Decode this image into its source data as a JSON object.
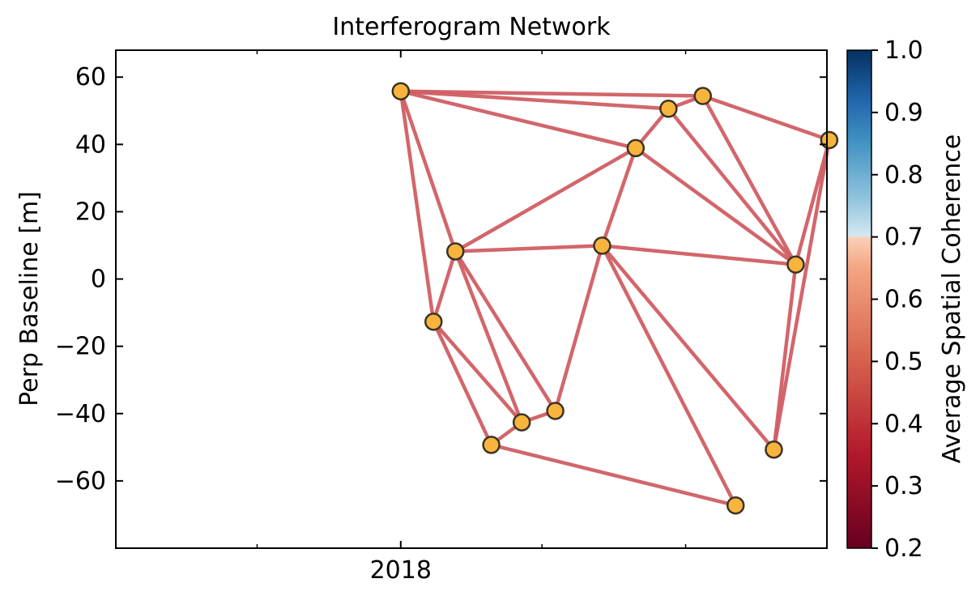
{
  "chart_data": {
    "type": "scatter",
    "title": "Interferogram Network",
    "xlabel": "",
    "ylabel": "Perp Baseline [m]",
    "x_ticks": [
      {
        "value": "2018-01-01",
        "label": "2018"
      }
    ],
    "xlim": [
      "2017-01-01",
      "2019-07-01"
    ],
    "ylim": [
      -80,
      68
    ],
    "y_ticks": [
      60,
      40,
      20,
      0,
      -20,
      -40,
      -60
    ],
    "y_tick_labels": [
      "60",
      "40",
      "20",
      "0",
      "−20",
      "−40",
      "−60"
    ],
    "minor_x_ticks": [
      "2017-07-01",
      "2018-07-01",
      "2019-01-01",
      "2019-07-01"
    ],
    "grid": false,
    "acquisitions": [
      {
        "date": "2018-01-01",
        "bperp": 55.8
      },
      {
        "date": "2018-02-12",
        "bperp": -12.7
      },
      {
        "date": "2018-03-12",
        "bperp": 8.2
      },
      {
        "date": "2018-04-27",
        "bperp": -49.3
      },
      {
        "date": "2018-06-05",
        "bperp": -42.6
      },
      {
        "date": "2018-07-18",
        "bperp": -39.2
      },
      {
        "date": "2018-09-16",
        "bperp": 9.9
      },
      {
        "date": "2018-10-29",
        "bperp": 38.9
      },
      {
        "date": "2018-12-10",
        "bperp": 50.6
      },
      {
        "date": "2019-01-23",
        "bperp": 54.4
      },
      {
        "date": "2019-03-06",
        "bperp": -67.3
      },
      {
        "date": "2019-04-24",
        "bperp": -50.7
      },
      {
        "date": "2019-05-22",
        "bperp": 4.3
      },
      {
        "date": "2019-07-04",
        "bperp": 41.3
      }
    ],
    "interferogram_pairs": [
      [
        0,
        8
      ],
      [
        0,
        9
      ],
      [
        0,
        7
      ],
      [
        0,
        2
      ],
      [
        0,
        1
      ],
      [
        1,
        2
      ],
      [
        1,
        3
      ],
      [
        1,
        4
      ],
      [
        2,
        4
      ],
      [
        2,
        5
      ],
      [
        2,
        6
      ],
      [
        2,
        7
      ],
      [
        3,
        4
      ],
      [
        3,
        10
      ],
      [
        4,
        5
      ],
      [
        5,
        6
      ],
      [
        6,
        7
      ],
      [
        6,
        10
      ],
      [
        6,
        11
      ],
      [
        6,
        12
      ],
      [
        7,
        8
      ],
      [
        7,
        12
      ],
      [
        8,
        9
      ],
      [
        8,
        12
      ],
      [
        9,
        12
      ],
      [
        9,
        13
      ],
      [
        11,
        12
      ],
      [
        11,
        13
      ],
      [
        12,
        13
      ]
    ],
    "pair_coherence": 0.48,
    "series": [
      {
        "values_from": "acquisitions",
        "marker_color": "#f9b43d"
      }
    ],
    "colorbar": {
      "label": "Average Spatial Coherence",
      "range": [
        0.2,
        1.0
      ],
      "ticks": [
        1.0,
        0.9,
        0.8,
        0.7,
        0.6,
        0.5,
        0.4,
        0.3,
        0.2
      ],
      "tick_labels": [
        "1.0",
        "0.9",
        "0.8",
        "0.7",
        "0.6",
        "0.5",
        "0.4",
        "0.3",
        "0.2"
      ],
      "colormap": "RdBu (truncated)"
    },
    "colors": {
      "edge": "#d05e64",
      "marker_fill": "#f9b43d",
      "marker_edge": "#3b3324"
    }
  }
}
